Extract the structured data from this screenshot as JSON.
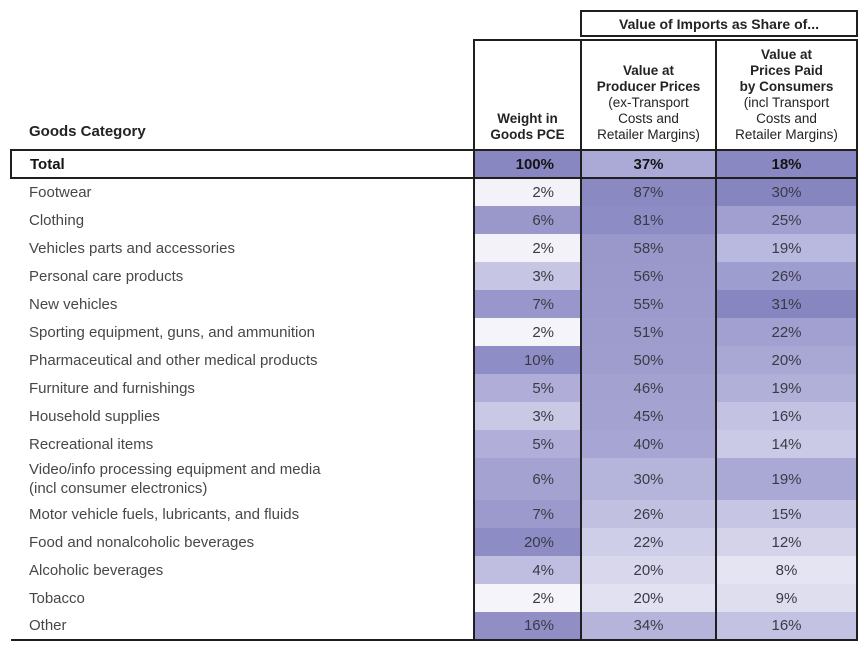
{
  "border_color": "#1f1f1f",
  "table": {
    "spanner_label": "Value of Imports as Share of...",
    "goods_category_label": "Goods Category",
    "col_headers": [
      {
        "bold_lines": [
          "Weight in",
          "Goods PCE"
        ],
        "normal_lines": []
      },
      {
        "bold_lines": [
          "Value at",
          "Producer Prices"
        ],
        "normal_lines": [
          "(ex-Transport",
          "Costs and",
          "Retailer Margins)"
        ]
      },
      {
        "bold_lines": [
          "Value at",
          "Prices Paid",
          "by Consumers"
        ],
        "normal_lines": [
          "(incl Transport",
          "Costs and",
          "Retailer Margins)"
        ]
      }
    ],
    "rows": [
      {
        "category": "Total",
        "is_total": true,
        "tall": false,
        "values": [
          "100%",
          "37%",
          "18%"
        ],
        "cell_colors": [
          "#8987c1",
          "#aba9d6",
          "#8a88c2"
        ]
      },
      {
        "category": "Footwear",
        "is_total": false,
        "tall": false,
        "values": [
          "2%",
          "87%",
          "30%"
        ],
        "cell_colors": [
          "#f3f2f9",
          "#8b89c2",
          "#8785c0"
        ]
      },
      {
        "category": "Clothing",
        "is_total": false,
        "tall": false,
        "values": [
          "6%",
          "81%",
          "25%"
        ],
        "cell_colors": [
          "#9a98cb",
          "#8e8cc4",
          "#a09fd0"
        ]
      },
      {
        "category": "Vehicles parts and accessories",
        "is_total": false,
        "tall": false,
        "values": [
          "2%",
          "58%",
          "19%"
        ],
        "cell_colors": [
          "#f3f2f9",
          "#9a98cb",
          "#b9b8de"
        ]
      },
      {
        "category": "Personal care products",
        "is_total": false,
        "tall": false,
        "values": [
          "3%",
          "56%",
          "26%"
        ],
        "cell_colors": [
          "#c6c5e3",
          "#9b99cb",
          "#9e9dcf"
        ]
      },
      {
        "category": "New vehicles",
        "is_total": false,
        "tall": false,
        "values": [
          "7%",
          "55%",
          "31%"
        ],
        "cell_colors": [
          "#9896ca",
          "#9c9acc",
          "#8886c1"
        ]
      },
      {
        "category": "Sporting equipment, guns, and ammunition",
        "is_total": false,
        "tall": false,
        "values": [
          "2%",
          "51%",
          "22%"
        ],
        "cell_colors": [
          "#f5f4fa",
          "#9e9ccd",
          "#a2a0d0"
        ]
      },
      {
        "category": "Pharmaceutical and other medical products",
        "is_total": false,
        "tall": false,
        "values": [
          "10%",
          "50%",
          "20%"
        ],
        "cell_colors": [
          "#8f8dc5",
          "#9f9dce",
          "#a9a8d4"
        ]
      },
      {
        "category": "Furniture and furnishings",
        "is_total": false,
        "tall": false,
        "values": [
          "5%",
          "46%",
          "19%"
        ],
        "cell_colors": [
          "#b0aed8",
          "#a3a1d0",
          "#b1b0d9"
        ]
      },
      {
        "category": "Household supplies",
        "is_total": false,
        "tall": false,
        "values": [
          "3%",
          "45%",
          "16%"
        ],
        "cell_colors": [
          "#c9c8e5",
          "#a4a2d1",
          "#c3c2e2"
        ]
      },
      {
        "category": "Recreational items",
        "is_total": false,
        "tall": false,
        "values": [
          "5%",
          "40%",
          "14%"
        ],
        "cell_colors": [
          "#b1afd9",
          "#a7a5d3",
          "#cbcae6"
        ]
      },
      {
        "category": "Video/info processing equipment and media\n(incl consumer electronics)",
        "is_total": false,
        "tall": true,
        "values": [
          "6%",
          "30%",
          "19%"
        ],
        "cell_colors": [
          "#a4a2d1",
          "#b5b4da",
          "#aaa9d5"
        ]
      },
      {
        "category": "Motor vehicle fuels, lubricants, and fluids",
        "is_total": false,
        "tall": false,
        "values": [
          "7%",
          "26%",
          "15%"
        ],
        "cell_colors": [
          "#9c9acc",
          "#c1c0e0",
          "#c6c5e4"
        ]
      },
      {
        "category": "Food and nonalcoholic beverages",
        "is_total": false,
        "tall": false,
        "values": [
          "20%",
          "22%",
          "12%"
        ],
        "cell_colors": [
          "#8e8cc4",
          "#cfcee8",
          "#d4d3ea"
        ]
      },
      {
        "category": "Alcoholic beverages",
        "is_total": false,
        "tall": false,
        "values": [
          "4%",
          "20%",
          "8%"
        ],
        "cell_colors": [
          "#bfbee0",
          "#d8d7ec",
          "#e5e4f3"
        ]
      },
      {
        "category": "Tobacco",
        "is_total": false,
        "tall": false,
        "values": [
          "2%",
          "20%",
          "9%"
        ],
        "cell_colors": [
          "#f5f4fa",
          "#e2e1f1",
          "#dfdeef"
        ]
      },
      {
        "category": "Other",
        "is_total": false,
        "tall": false,
        "values": [
          "16%",
          "34%",
          "16%"
        ],
        "cell_colors": [
          "#908ec5",
          "#b6b4db",
          "#c3c2e2"
        ]
      }
    ]
  },
  "chart_data": {
    "type": "table",
    "title": "Value of Imports as Share of...",
    "heatmap": true,
    "heatmap_color_low": "#f5f4fa",
    "heatmap_color_high": "#8785c0",
    "columns": [
      "Goods Category",
      "Weight in Goods PCE",
      "Value at Producer Prices (ex-Transport Costs and Retailer Margins)",
      "Value at Prices Paid by Consumers (incl Transport Costs and Retailer Margins)"
    ],
    "unit": "percent",
    "categories": [
      "Total",
      "Footwear",
      "Clothing",
      "Vehicles parts and accessories",
      "Personal care products",
      "New vehicles",
      "Sporting equipment, guns, and ammunition",
      "Pharmaceutical and other medical products",
      "Furniture and furnishings",
      "Household supplies",
      "Recreational items",
      "Video/info processing equipment and media (incl consumer electronics)",
      "Motor vehicle fuels, lubricants, and fluids",
      "Food and nonalcoholic beverages",
      "Alcoholic beverages",
      "Tobacco",
      "Other"
    ],
    "series": [
      {
        "name": "Weight in Goods PCE",
        "values": [
          100,
          2,
          6,
          2,
          3,
          7,
          2,
          10,
          5,
          3,
          5,
          6,
          7,
          20,
          4,
          2,
          16
        ]
      },
      {
        "name": "Value at Producer Prices",
        "values": [
          37,
          87,
          81,
          58,
          56,
          55,
          51,
          50,
          46,
          45,
          40,
          30,
          26,
          22,
          20,
          20,
          34
        ]
      },
      {
        "name": "Value at Prices Paid by Consumers",
        "values": [
          18,
          30,
          25,
          19,
          26,
          31,
          22,
          20,
          19,
          16,
          14,
          19,
          15,
          12,
          8,
          9,
          16
        ]
      }
    ]
  }
}
